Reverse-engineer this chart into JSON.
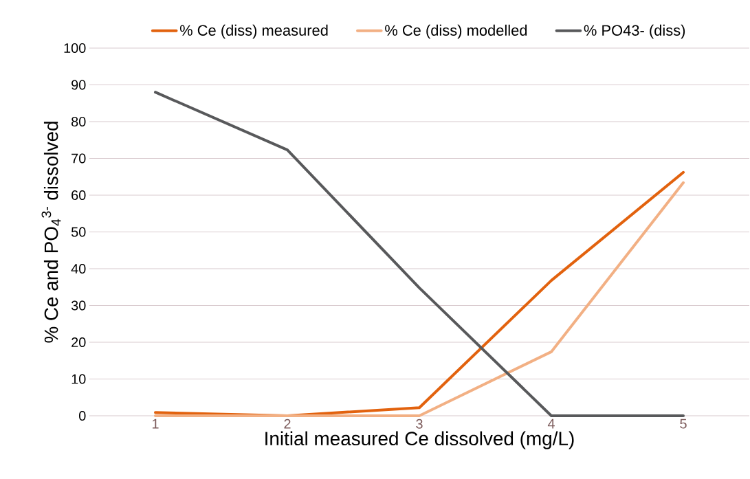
{
  "chart_data": {
    "type": "line",
    "xlabel": "Initial measured Ce dissolved (mg/L)",
    "ylabel": "% Ce and PO$_{4}$$^{3-}$ dissolved",
    "categories": [
      "1",
      "2",
      "3",
      "4",
      "5"
    ],
    "series": [
      {
        "name": "% Ce (diss) measured",
        "color": "#e2620e",
        "values": [
          0.9,
          0,
          2.2,
          36.8,
          66.2
        ]
      },
      {
        "name": "% Ce (diss) modelled",
        "color": "#f2b084",
        "values": [
          0,
          0,
          0,
          17.4,
          63.4
        ]
      },
      {
        "name": "% PO43- (diss)",
        "color": "#58595b",
        "values": [
          88.0,
          72.3,
          34.8,
          0,
          0
        ]
      }
    ],
    "ylim": [
      0,
      100
    ],
    "yticks": [
      0,
      10,
      20,
      30,
      40,
      50,
      60,
      70,
      80,
      90,
      100
    ],
    "grid": "y",
    "legend": "top",
    "marker": "none",
    "line_style": "solid"
  }
}
